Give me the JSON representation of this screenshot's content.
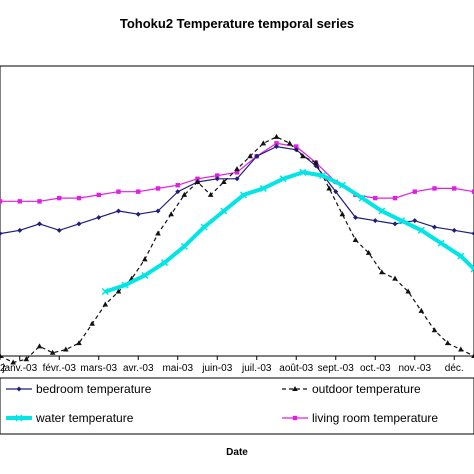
{
  "chart_data": {
    "type": "line",
    "title": "Tohoku2 Temperature temporal series",
    "xlabel": "Date",
    "ylabel": "",
    "x_tick_labels": [
      "2",
      "janv.-03",
      "févr.-03",
      "mars-03",
      "avr.-03",
      "mai-03",
      "juin-03",
      "juil.-03",
      "août-03",
      "sept.-03",
      "oct.-03",
      "nov.-03",
      "déc."
    ],
    "x_unit": "days since start of visible window (Dec 31 2002 = 0)",
    "ylim": [
      0,
      45
    ],
    "grid": false,
    "legend_position": "bottom",
    "series": [
      {
        "name": "bedroom temperature",
        "color": "#1f1f7a",
        "style": "solid-diamond",
        "x": [
          0,
          15,
          30,
          45,
          60,
          75,
          90,
          105,
          120,
          135,
          150,
          165,
          180,
          195,
          210,
          225,
          240,
          255,
          270,
          285,
          300,
          315,
          330,
          345,
          360
        ],
        "values": [
          19.0,
          19.5,
          20.5,
          19.5,
          20.5,
          21.5,
          22.5,
          22.0,
          22.5,
          25.5,
          27.0,
          27.5,
          27.5,
          31.0,
          32.5,
          32.0,
          29.5,
          25.5,
          21.5,
          21.0,
          20.5,
          21.0,
          20.0,
          19.5,
          19.0
        ]
      },
      {
        "name": "outdoor temperature",
        "color": "#111111",
        "style": "dashed-triangle",
        "x": [
          0,
          10,
          20,
          30,
          40,
          50,
          60,
          70,
          80,
          90,
          100,
          110,
          120,
          130,
          140,
          150,
          160,
          170,
          180,
          190,
          200,
          210,
          220,
          230,
          240,
          250,
          260,
          270,
          280,
          290,
          300,
          310,
          320,
          330,
          340,
          350,
          360
        ],
        "values": [
          0.0,
          -1.0,
          -0.5,
          1.5,
          0.5,
          1.0,
          2.0,
          5.0,
          8.0,
          10.0,
          12.0,
          15.0,
          19.0,
          22.0,
          25.0,
          27.0,
          25.0,
          27.0,
          29.0,
          31.0,
          33.0,
          34.0,
          33.0,
          31.0,
          30.0,
          26.0,
          22.0,
          18.0,
          16.0,
          13.0,
          12.0,
          10.0,
          7.0,
          4.0,
          2.0,
          1.0,
          0.0
        ]
      },
      {
        "name": "water temperature",
        "color": "#00e5e5",
        "style": "thick-solid",
        "x": [
          80,
          95,
          110,
          125,
          140,
          155,
          170,
          185,
          200,
          215,
          230,
          245,
          260,
          275,
          290,
          305,
          320,
          335,
          350,
          360
        ],
        "values": [
          10.0,
          11.0,
          12.5,
          14.5,
          17.0,
          20.0,
          22.5,
          25.0,
          26.0,
          27.5,
          28.5,
          28.0,
          26.5,
          24.5,
          22.5,
          21.0,
          19.5,
          17.5,
          15.5,
          13.5
        ]
      },
      {
        "name": "living room temperature",
        "color": "#e020e0",
        "style": "solid-square",
        "x": [
          0,
          15,
          30,
          45,
          60,
          75,
          90,
          105,
          120,
          135,
          150,
          165,
          180,
          195,
          210,
          225,
          240,
          255,
          270,
          285,
          300,
          315,
          330,
          345,
          360
        ],
        "values": [
          24.0,
          24.0,
          24.0,
          24.5,
          24.5,
          25.0,
          25.5,
          25.5,
          26.0,
          26.5,
          27.5,
          28.0,
          28.5,
          31.0,
          33.0,
          32.5,
          30.0,
          27.0,
          25.0,
          24.5,
          24.5,
          25.5,
          26.0,
          26.0,
          25.5
        ]
      }
    ]
  }
}
